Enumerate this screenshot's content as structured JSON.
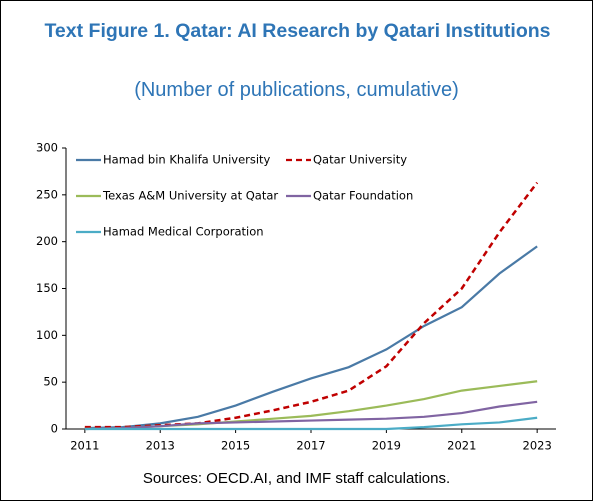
{
  "chart_data": {
    "type": "line",
    "title": "Text Figure 1. Qatar: AI Research by Qatari Institutions",
    "subtitle": "(Number of publications, cumulative)",
    "source": "Sources: OECD.AI, and IMF staff calculations.",
    "x": [
      2011,
      2012,
      2013,
      2014,
      2015,
      2016,
      2017,
      2018,
      2019,
      2020,
      2021,
      2022,
      2023
    ],
    "xlim": [
      2010.5,
      2023.5
    ],
    "xticks": [
      2011,
      2013,
      2015,
      2017,
      2019,
      2021,
      2023
    ],
    "ylim": [
      0,
      300
    ],
    "yticks": [
      0,
      50,
      100,
      150,
      200,
      250,
      300
    ],
    "grid": false,
    "legend": "top-left",
    "series": [
      {
        "name": "Hamad bin Khalifa University",
        "color": "#4a7aa6",
        "dashed": false,
        "values": [
          1,
          2,
          6,
          13,
          25,
          40,
          54,
          66,
          85,
          110,
          130,
          166,
          195
        ]
      },
      {
        "name": "Qatar University",
        "color": "#c00000",
        "dashed": true,
        "values": [
          2,
          2,
          4,
          6,
          12,
          20,
          29,
          41,
          67,
          113,
          150,
          210,
          263
        ]
      },
      {
        "name": "Texas A&M University at Qatar",
        "color": "#9bbb59",
        "dashed": false,
        "values": [
          0,
          1,
          3,
          5,
          8,
          11,
          14,
          19,
          25,
          32,
          41,
          46,
          51
        ]
      },
      {
        "name": "Qatar Foundation",
        "color": "#8064a2",
        "dashed": false,
        "values": [
          0,
          1,
          3,
          6,
          7,
          8,
          9,
          10,
          11,
          13,
          17,
          24,
          29
        ]
      },
      {
        "name": "Hamad Medical Corporation",
        "color": "#4bacc6",
        "dashed": false,
        "values": [
          0,
          0,
          0,
          0,
          0,
          0,
          0,
          0,
          0,
          2,
          5,
          7,
          12
        ]
      }
    ]
  }
}
